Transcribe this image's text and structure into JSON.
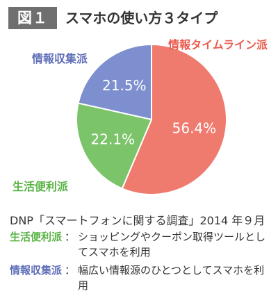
{
  "header": {
    "badge": "図１",
    "title": "スマホの使い方３タイプ"
  },
  "chart_data": {
    "type": "pie",
    "title": "",
    "slices": [
      {
        "label": "情報タイムライン派",
        "value": 56.4,
        "display": "56.4%",
        "color": "#ef7b6e"
      },
      {
        "label": "生活便利派",
        "value": 22.1,
        "display": "22.1%",
        "color": "#7bc46a"
      },
      {
        "label": "情報収集派",
        "value": 21.5,
        "display": "21.5%",
        "color": "#7e8fcf"
      }
    ],
    "label_colors": [
      "#ea5a4f",
      "#58b344",
      "#5f6fb8"
    ]
  },
  "source": "DNP「スマートフォンに関する調査」2014 年９月",
  "notes": [
    {
      "term": "生活便利派",
      "separator": "：",
      "desc": "ショッピングやクーポン取得ツールとしてスマホを利用"
    },
    {
      "term": "情報収集派",
      "separator": "：",
      "desc": "幅広い情報源のひとつとしてスマホを利用"
    }
  ]
}
